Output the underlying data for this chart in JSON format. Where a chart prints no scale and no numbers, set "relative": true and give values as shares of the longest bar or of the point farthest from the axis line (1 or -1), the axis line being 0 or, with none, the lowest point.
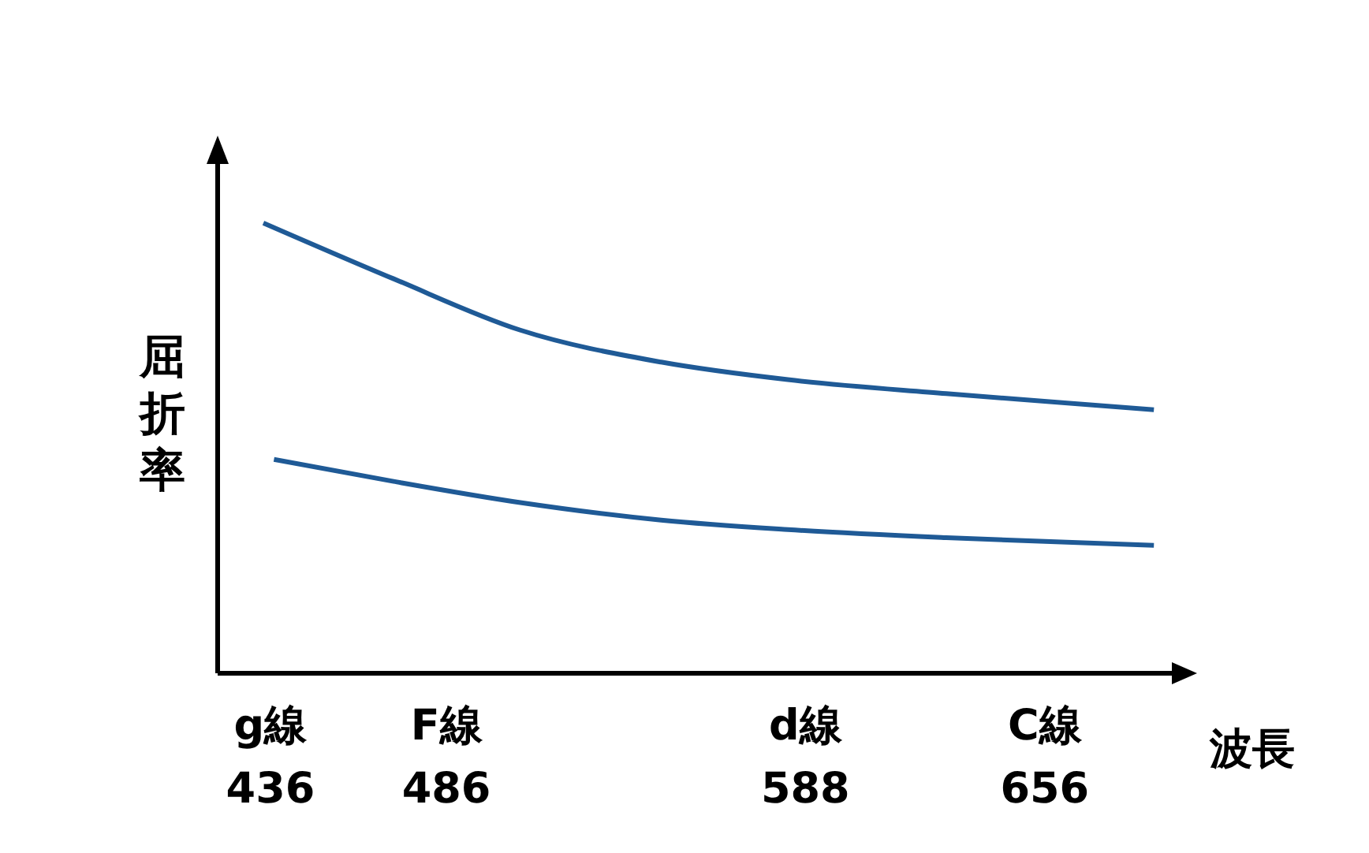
{
  "chart_data": {
    "type": "line",
    "relative": true,
    "xlabel": "波長",
    "ylabel": "屈折率",
    "xlim": [
      421,
      693
    ],
    "xticks": [
      436,
      486,
      588,
      656
    ],
    "annotations": [
      "g線",
      "F線",
      "d線",
      "C線"
    ],
    "series": [
      {
        "color": "#1f5a96",
        "x": [
          434,
          471,
          507,
          547,
          583,
          628,
          687
        ],
        "values": [
          1.0,
          0.876,
          0.762,
          0.691,
          0.652,
          0.621,
          0.585
        ]
      },
      {
        "color": "#1f5a96",
        "x": [
          437,
          471,
          507,
          547,
          583,
          628,
          687
        ],
        "values": [
          0.475,
          0.426,
          0.379,
          0.34,
          0.319,
          0.301,
          0.284
        ]
      }
    ]
  }
}
